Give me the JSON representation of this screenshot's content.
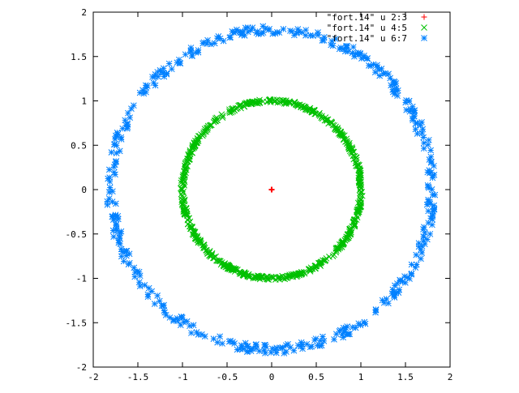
{
  "chart_data": {
    "type": "scatter",
    "xlim": [
      -2,
      2
    ],
    "ylim": [
      -2,
      2
    ],
    "xticks": [
      "-2",
      "-1.5",
      "-1",
      "-0.5",
      "0",
      "0.5",
      "1",
      "1.5",
      "2"
    ],
    "yticks": [
      "2",
      "1.5",
      "1",
      "0.5",
      "0",
      "-0.5",
      "-1",
      "-1.5",
      "-2"
    ],
    "grid": false,
    "legend_position": "top-right",
    "series": [
      {
        "name": "\"fort.14\" u 2:3",
        "marker": "plus",
        "color": "#ff0000",
        "points": [
          [
            0,
            0
          ]
        ]
      },
      {
        "name": "\"fort.14\" u 4:5",
        "marker": "cross",
        "color": "#00c000",
        "shape": "ring",
        "center": [
          0,
          0
        ],
        "radius": 1.0,
        "spread": 0.02,
        "count": 700
      },
      {
        "name": "\"fort.14\" u 6:7",
        "marker": "star",
        "color": "#0080ff",
        "shape": "ring",
        "center": [
          0,
          0
        ],
        "radius": 1.8,
        "spread": 0.05,
        "count": 450
      }
    ]
  }
}
